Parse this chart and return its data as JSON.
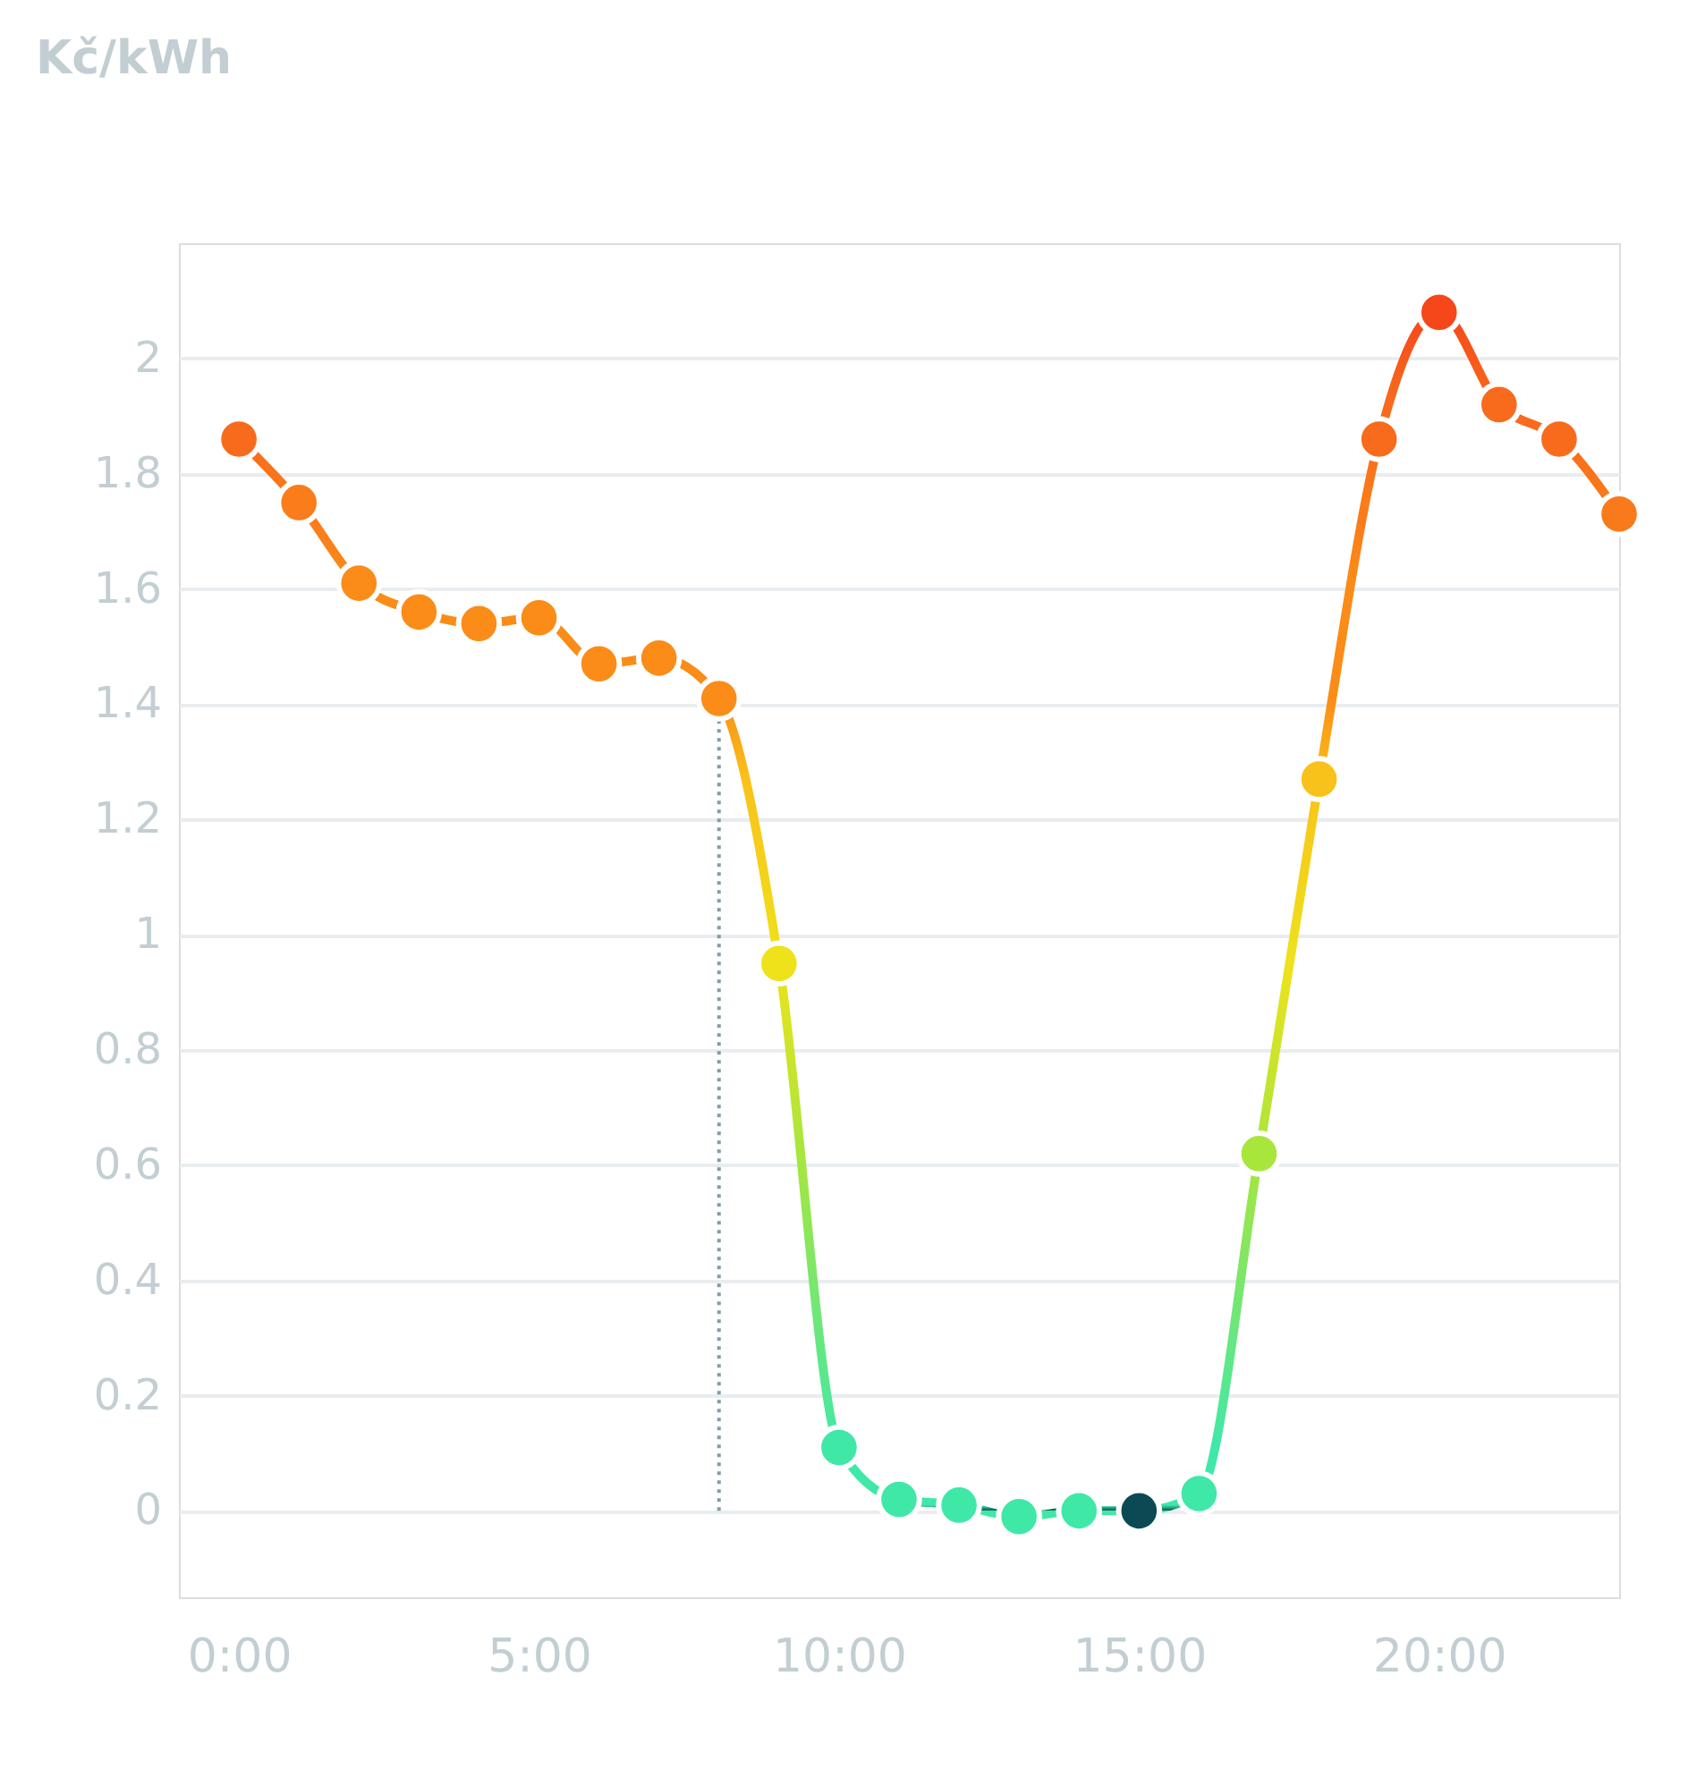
{
  "chart_data": {
    "type": "line",
    "ylabel": "Kč/kWh",
    "x": [
      0,
      1,
      2,
      3,
      4,
      5,
      6,
      7,
      8,
      9,
      10,
      11,
      12,
      13,
      14,
      15,
      16,
      17,
      18,
      19,
      20,
      21,
      22,
      23
    ],
    "series": [
      {
        "values": [
          1.86,
          1.75,
          1.61,
          1.56,
          1.54,
          1.55,
          1.47,
          1.48,
          1.41,
          0.95,
          0.11,
          0.02,
          0.01,
          -0.01,
          0.0,
          0.0,
          0.03,
          0.62,
          1.27,
          1.86,
          2.08,
          1.92,
          1.86,
          1.73
        ],
        "colors": [
          "#f86b1c",
          "#fa7c1a",
          "#fb8c17",
          "#fb8c17",
          "#fb8c17",
          "#fb8c17",
          "#fb8c17",
          "#fb8c17",
          "#fb8c17",
          "#eee21a",
          "#40e8a8",
          "#40e8a8",
          "#40e8a8",
          "#40e8a8",
          "#40e8a8",
          "#0b4a55",
          "#40e8a8",
          "#a8e63c",
          "#f9c21a",
          "#f86b1c",
          "#f5471a",
          "#f86b1c",
          "#f86b1c",
          "#f97a1a"
        ]
      }
    ],
    "xlim": [
      -1,
      23
    ],
    "ylim": [
      -0.15,
      2.2
    ],
    "xticks": [
      {
        "value": 0,
        "label": "0:00"
      },
      {
        "value": 5,
        "label": "5:00"
      },
      {
        "value": 10,
        "label": "10:00"
      },
      {
        "value": 15,
        "label": "15:00"
      },
      {
        "value": 20,
        "label": "20:00"
      }
    ],
    "yticks": [
      0,
      0.2,
      0.4,
      0.6,
      0.8,
      1,
      1.2,
      1.4,
      1.6,
      1.8,
      2
    ],
    "grid": "y",
    "marker": "circle",
    "line_style": "solid",
    "ref_lines": [
      {
        "axis": "x",
        "value": 8,
        "color": "#7f9ea6",
        "line_style": "dotted"
      }
    ]
  }
}
